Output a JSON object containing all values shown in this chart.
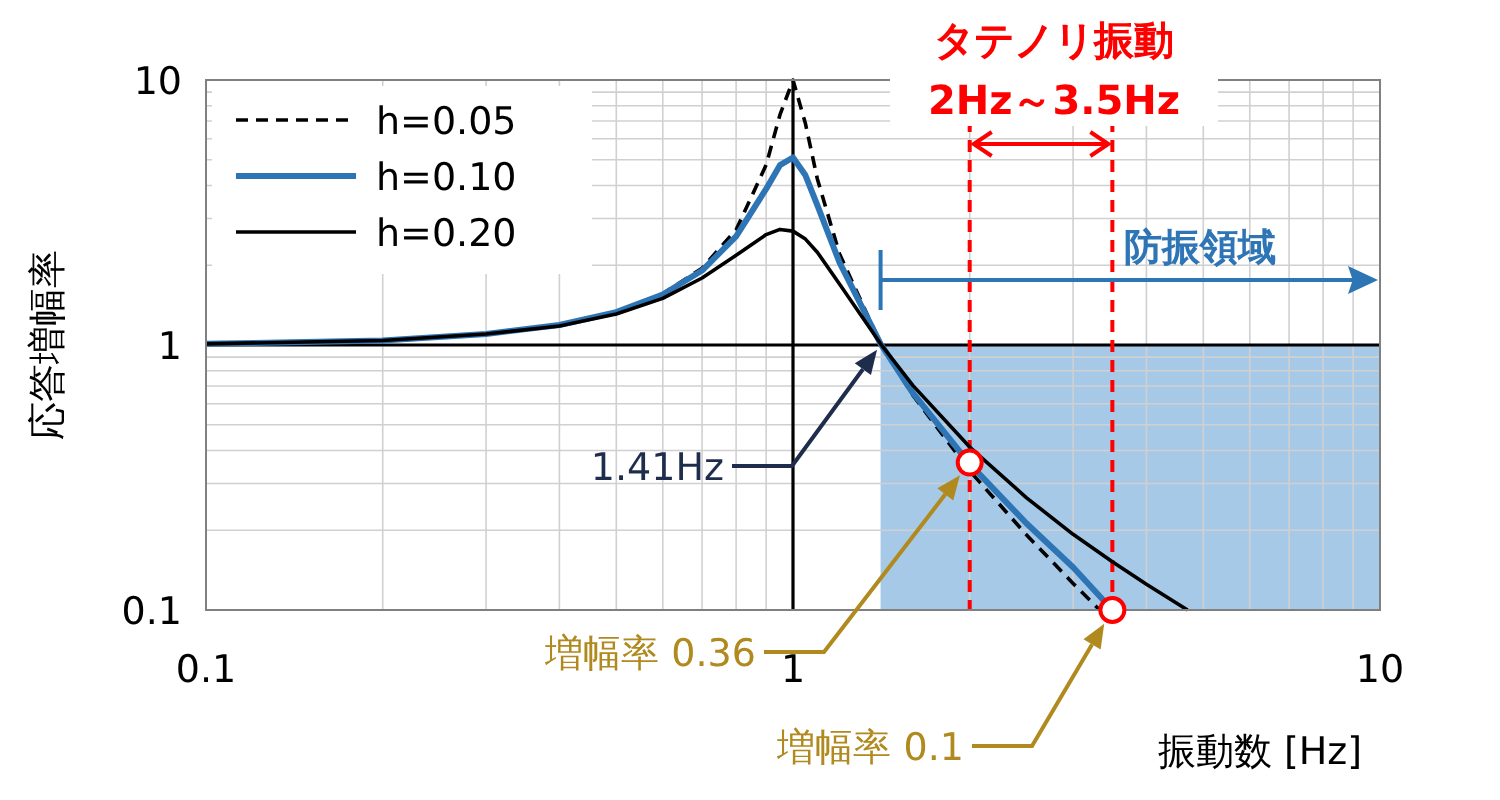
{
  "chart_data": {
    "type": "line",
    "xlabel": "振動数 [Hz]",
    "ylabel": "応答増幅率",
    "log": "xy",
    "xlim": [
      0.1,
      10
    ],
    "ylim": [
      0.1,
      10
    ],
    "xticks": [
      0.1,
      1,
      10
    ],
    "yticks": [
      0.1,
      1,
      10
    ],
    "grid": true,
    "legend": "top left",
    "series": [
      {
        "name": "h=0.05",
        "color": "#000000",
        "line_style": "dashed",
        "x": [
          0.1,
          0.2,
          0.3,
          0.4,
          0.5,
          0.6,
          0.7,
          0.8,
          0.9,
          0.95,
          1,
          1.05,
          1.1,
          1.2,
          1.41,
          1.6,
          2,
          2.5,
          3,
          3.33
        ],
        "values": [
          1.01,
          1.04,
          1.1,
          1.19,
          1.33,
          1.56,
          1.95,
          2.72,
          4.78,
          7.38,
          10,
          6.85,
          4.24,
          2.21,
          1.01,
          0.646,
          0.335,
          0.192,
          0.126,
          0.1
        ]
      },
      {
        "name": "h=0.10",
        "color": "#2e75b6",
        "line_style": "solid",
        "x": [
          0.1,
          0.2,
          0.3,
          0.4,
          0.5,
          0.6,
          0.7,
          0.8,
          0.9,
          0.95,
          1,
          1.05,
          1.1,
          1.2,
          1.41,
          1.6,
          2,
          2.5,
          3,
          3.5
        ],
        "values": [
          1.01,
          1.04,
          1.1,
          1.19,
          1.33,
          1.55,
          1.91,
          2.57,
          3.88,
          4.77,
          5.1,
          4.37,
          3.37,
          2.05,
          1.01,
          0.659,
          0.356,
          0.212,
          0.145,
          0.1
        ]
      },
      {
        "name": "h=0.20",
        "color": "#000000",
        "line_style": "solid",
        "x": [
          0.1,
          0.2,
          0.3,
          0.4,
          0.5,
          0.6,
          0.7,
          0.8,
          0.9,
          0.95,
          1,
          1.05,
          1.1,
          1.2,
          1.41,
          1.6,
          2,
          2.5,
          3,
          3.5,
          4,
          4.7
        ],
        "values": [
          1.01,
          1.04,
          1.1,
          1.18,
          1.31,
          1.5,
          1.79,
          2.18,
          2.61,
          2.73,
          2.69,
          2.51,
          2.24,
          1.7,
          1.01,
          0.704,
          0.412,
          0.265,
          0.193,
          0.152,
          0.125,
          0.1
        ]
      },
      {
        "type": "scatter",
        "color": "#ff0000",
        "marker": "circle",
        "x": [
          2,
          3.5
        ],
        "values": [
          0.36,
          0.1
        ]
      }
    ],
    "ref_lines": [
      {
        "axis": "y",
        "value": 1,
        "color": "#000000",
        "line_style": "solid"
      },
      {
        "axis": "x",
        "value": 1,
        "color": "#000000",
        "line_style": "solid"
      },
      {
        "axis": "x",
        "value": 2,
        "color": "#ff0000",
        "line_style": "dashed"
      },
      {
        "axis": "x",
        "value": 3.5,
        "color": "#ff0000",
        "line_style": "dashed"
      }
    ],
    "bands": [
      {
        "axis": "x",
        "from": 1.41,
        "to": 10,
        "label": "防振領域",
        "color": "#9dc3e6"
      }
    ],
    "annotations": [
      "タテノリ振動",
      "2Hz～3.5Hz",
      "1.41Hz",
      "増幅率 0.36",
      "増幅率 0.1"
    ]
  }
}
